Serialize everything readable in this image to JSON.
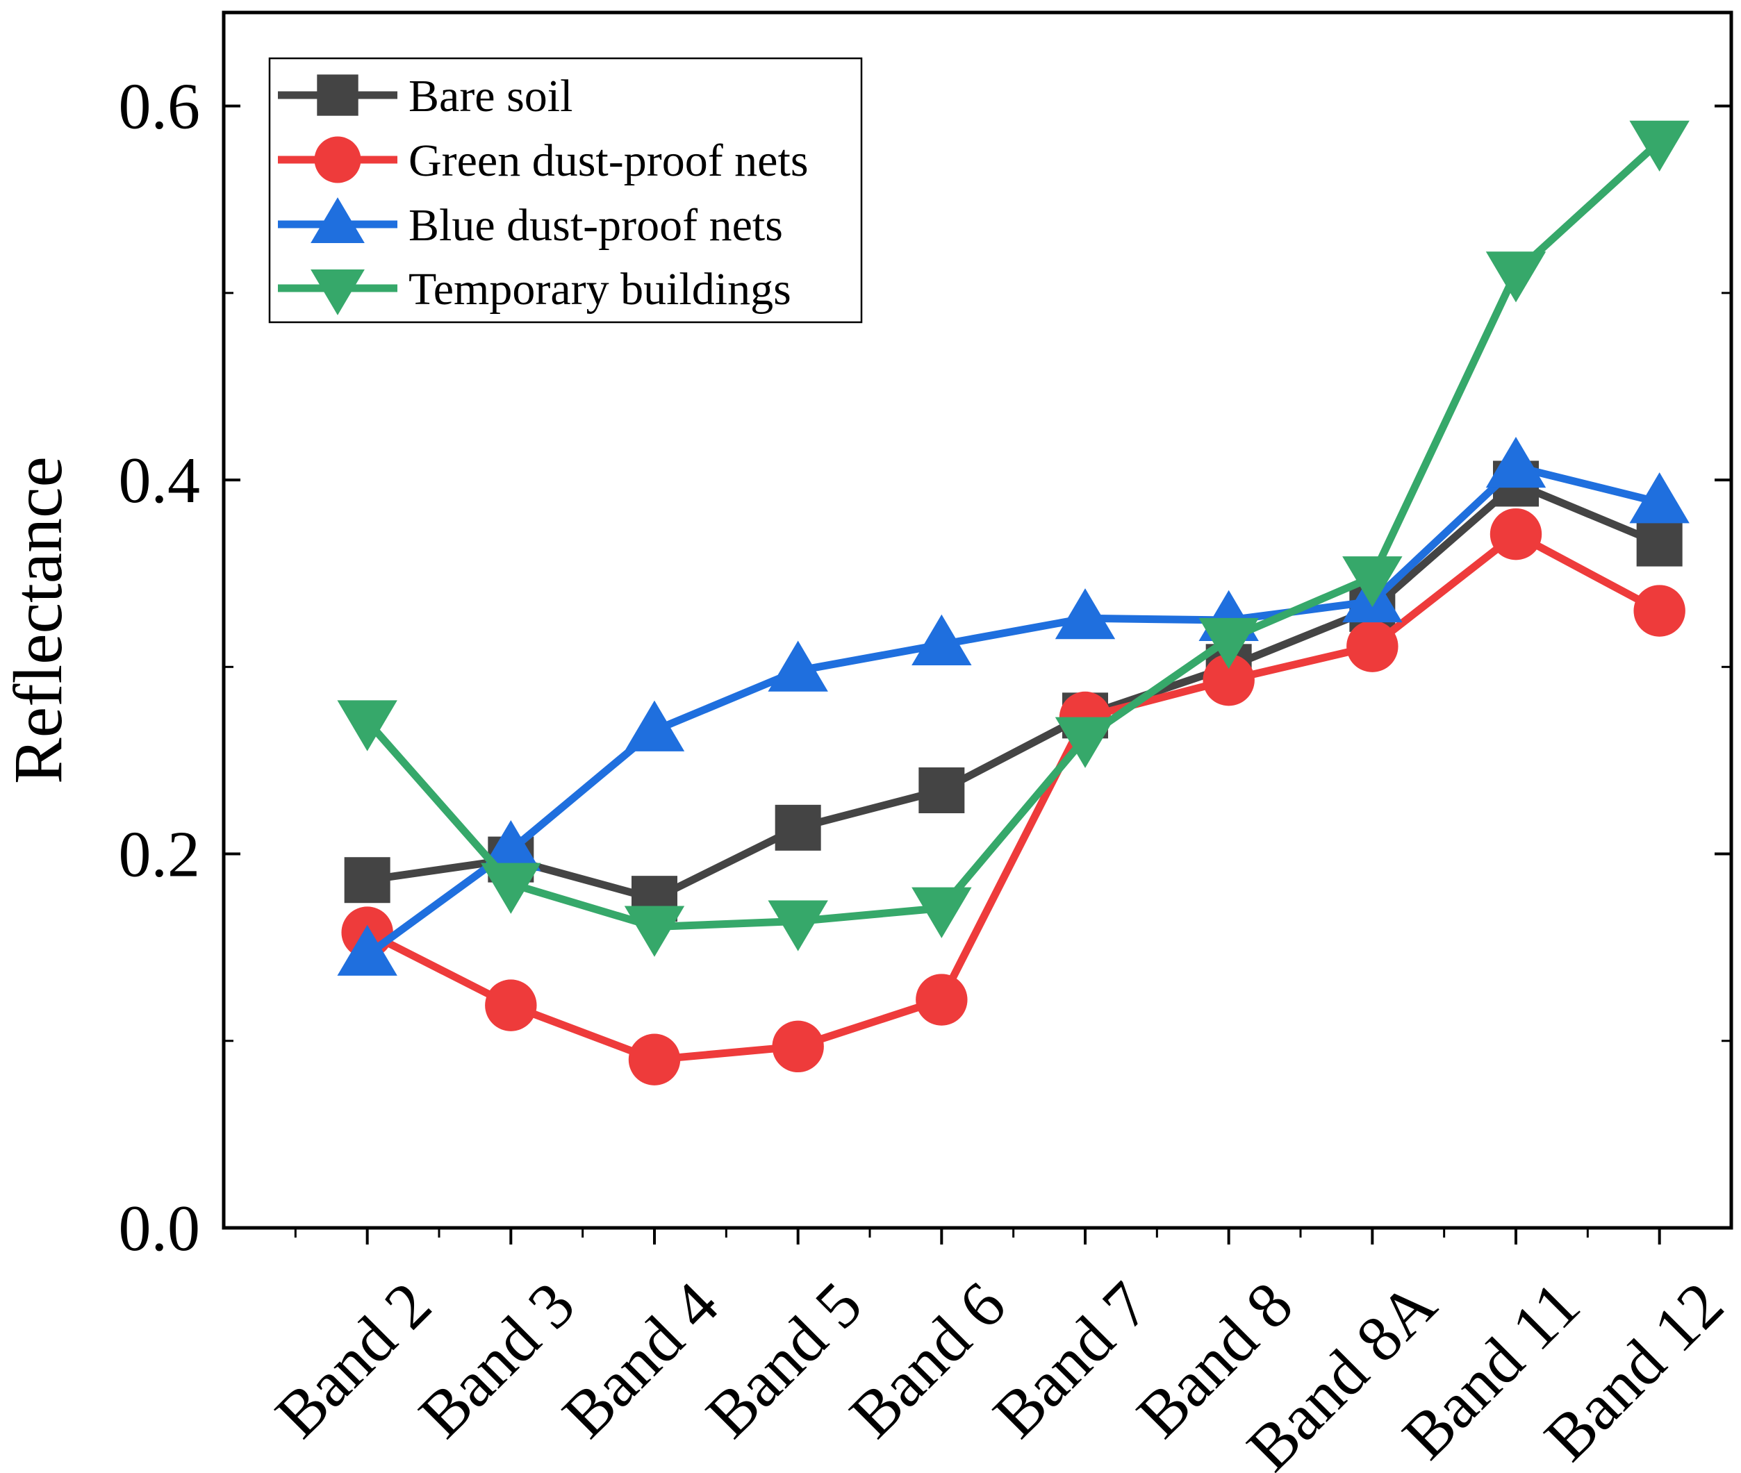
{
  "chart_data": {
    "type": "line",
    "title": "",
    "xlabel": "",
    "ylabel": "Reflectance",
    "ylim": [
      0,
      0.65
    ],
    "yticks": [
      0.0,
      0.2,
      0.4,
      0.6
    ],
    "ytick_labels": [
      "0.0",
      "0.2",
      "0.4",
      "0.6"
    ],
    "grid": false,
    "legend_position": "top-left",
    "categories": [
      "Band 2",
      "Band 3",
      "Band 4",
      "Band 5",
      "Band 6",
      "Band 7",
      "Band 8",
      "Band 8A",
      "Band 11",
      "Band 12"
    ],
    "series": [
      {
        "name": "Bare soil",
        "marker": "square",
        "color": "#444444",
        "values": [
          0.186,
          0.197,
          0.176,
          0.214,
          0.234,
          0.274,
          0.3,
          0.331,
          0.398,
          0.366
        ]
      },
      {
        "name": "Green dust-proof nets",
        "marker": "circle",
        "color": "#ee3b3b",
        "values": [
          0.158,
          0.119,
          0.09,
          0.097,
          0.122,
          0.273,
          0.293,
          0.311,
          0.371,
          0.33
        ]
      },
      {
        "name": "Blue dust-proof nets",
        "marker": "triangle-up",
        "color": "#1f6fde",
        "values": [
          0.146,
          0.202,
          0.266,
          0.298,
          0.312,
          0.326,
          0.325,
          0.335,
          0.407,
          0.388
        ]
      },
      {
        "name": "Temporary buildings",
        "marker": "triangle-down",
        "color": "#36a86a",
        "values": [
          0.271,
          0.184,
          0.161,
          0.164,
          0.171,
          0.262,
          0.315,
          0.348,
          0.511,
          0.581
        ]
      }
    ]
  }
}
